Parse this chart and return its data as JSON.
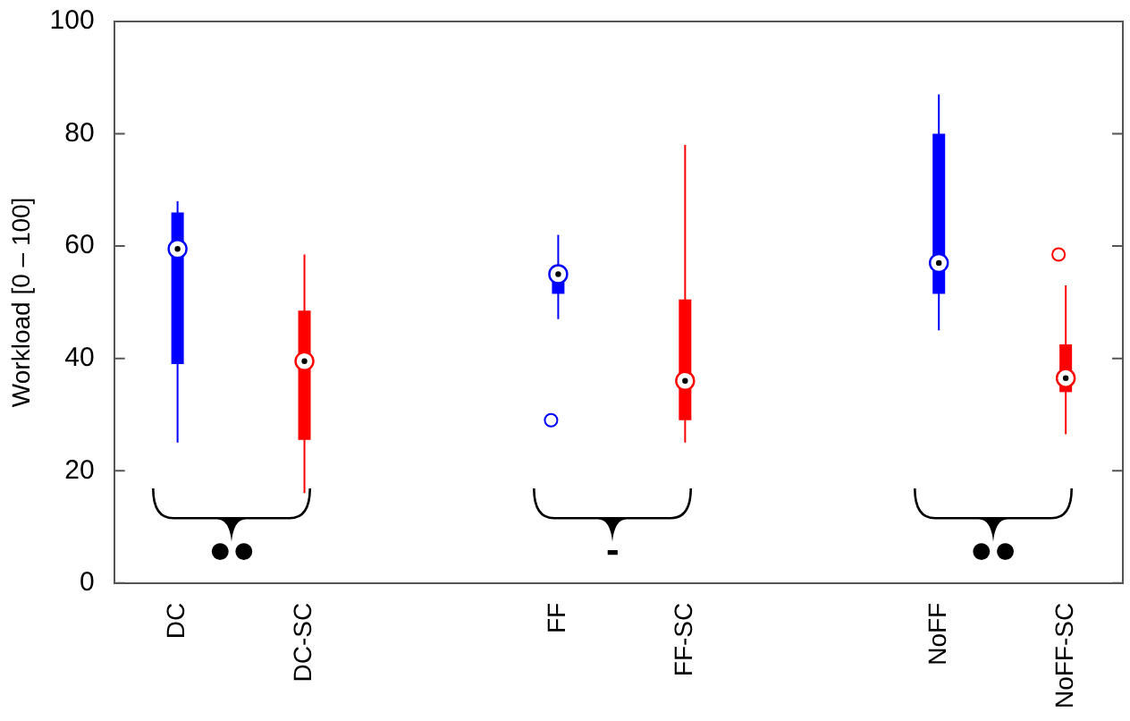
{
  "chart_data": {
    "type": "box",
    "ylabel": "Workload [0 – 100]",
    "categories": [
      "DC",
      "DC-SC",
      "FF",
      "FF-SC",
      "NoFF",
      "NoFF-SC"
    ],
    "colors": [
      "#0000ff",
      "#ff0000",
      "#0000ff",
      "#ff0000",
      "#0000ff",
      "#ff0000"
    ],
    "boxes": [
      {
        "low": 25,
        "q1": 39,
        "median": 59.5,
        "q3": 66,
        "high": 68
      },
      {
        "low": 16,
        "q1": 25.5,
        "median": 39.5,
        "q3": 48.5,
        "high": 58.5
      },
      {
        "low": 47,
        "q1": 51.5,
        "median": 55,
        "q3": 55.5,
        "high": 62,
        "outliers": [
          29
        ]
      },
      {
        "low": 25,
        "q1": 29,
        "median": 36,
        "q3": 50.5,
        "high": 78
      },
      {
        "low": 45,
        "q1": 51.5,
        "median": 57,
        "q3": 80,
        "high": 87
      },
      {
        "low": 26.5,
        "q1": 34,
        "median": 36.5,
        "q3": 42.5,
        "high": 53,
        "outliers": [
          58.5
        ]
      }
    ],
    "ylim": [
      0,
      100
    ],
    "yticks": [
      0,
      20,
      40,
      60,
      80,
      100
    ],
    "grid": false,
    "legend": false,
    "annotations": [
      "●●",
      "-",
      "●●"
    ]
  }
}
